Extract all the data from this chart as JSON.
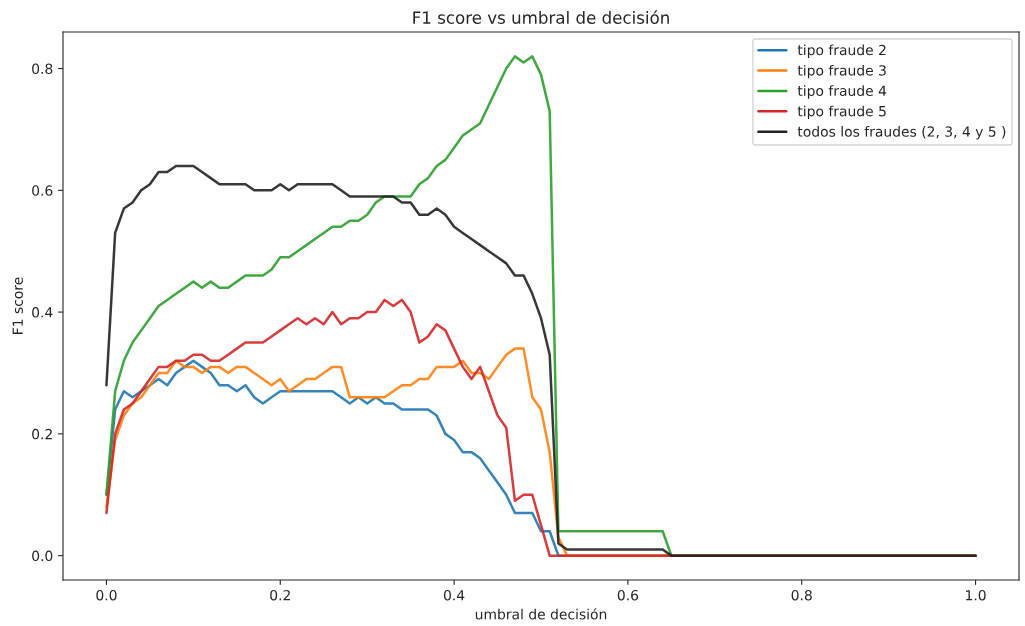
{
  "chart_data": {
    "type": "line",
    "title": "F1 score vs umbral de decisión",
    "xlabel": "umbral de decisión",
    "ylabel": "F1 score",
    "xlim": [
      -0.05,
      1.05
    ],
    "xticks": [
      {
        "value": 0,
        "label": "0.0"
      },
      0.2,
      0.4,
      0.6,
      0.8,
      {
        "value": 1,
        "label": "1.0"
      }
    ],
    "ylim": [
      -0.04,
      0.86
    ],
    "yticks": [
      {
        "value": 0,
        "label": "0.0"
      },
      0.2,
      0.4,
      0.6,
      0.8
    ],
    "grid": false,
    "legend": "top right",
    "marker": "none",
    "line_style": "solid",
    "series": [
      {
        "name": "tipo fraude 2",
        "color": "#1f77b4",
        "x": [
          0,
          0.01,
          0.02,
          0.03,
          0.04,
          0.05,
          0.06,
          0.07,
          0.08,
          0.09,
          0.1,
          0.11,
          0.12,
          0.13,
          0.14,
          0.15,
          0.16,
          0.17,
          0.18,
          0.19,
          0.2,
          0.21,
          0.22,
          0.23,
          0.24,
          0.25,
          0.26,
          0.27,
          0.28,
          0.29,
          0.3,
          0.31,
          0.32,
          0.33,
          0.34,
          0.35,
          0.36,
          0.37,
          0.38,
          0.39,
          0.4,
          0.41,
          0.42,
          0.43,
          0.44,
          0.45,
          0.46,
          0.47,
          0.48,
          0.49,
          0.5,
          0.51,
          0.52,
          0.53,
          1.0
        ],
        "values": [
          0.1,
          0.24,
          0.27,
          0.26,
          0.27,
          0.28,
          0.29,
          0.28,
          0.3,
          0.31,
          0.32,
          0.31,
          0.3,
          0.28,
          0.28,
          0.27,
          0.28,
          0.26,
          0.25,
          0.26,
          0.27,
          0.27,
          0.27,
          0.27,
          0.27,
          0.27,
          0.27,
          0.26,
          0.25,
          0.26,
          0.25,
          0.26,
          0.25,
          0.25,
          0.24,
          0.24,
          0.24,
          0.24,
          0.23,
          0.2,
          0.19,
          0.17,
          0.17,
          0.16,
          0.14,
          0.12,
          0.1,
          0.07,
          0.07,
          0.07,
          0.04,
          0.04,
          0,
          0,
          0
        ]
      },
      {
        "name": "tipo fraude 3",
        "color": "#ff7f0e",
        "x": [
          0,
          0.01,
          0.02,
          0.03,
          0.04,
          0.05,
          0.06,
          0.07,
          0.08,
          0.09,
          0.1,
          0.11,
          0.12,
          0.13,
          0.14,
          0.15,
          0.16,
          0.17,
          0.18,
          0.19,
          0.2,
          0.21,
          0.22,
          0.23,
          0.24,
          0.25,
          0.26,
          0.27,
          0.28,
          0.29,
          0.3,
          0.31,
          0.32,
          0.33,
          0.34,
          0.35,
          0.36,
          0.37,
          0.38,
          0.39,
          0.4,
          0.41,
          0.42,
          0.43,
          0.44,
          0.45,
          0.46,
          0.47,
          0.48,
          0.49,
          0.5,
          0.51,
          0.52,
          0.53,
          1.0
        ],
        "values": [
          0.08,
          0.19,
          0.23,
          0.25,
          0.26,
          0.28,
          0.3,
          0.3,
          0.32,
          0.31,
          0.31,
          0.3,
          0.31,
          0.31,
          0.3,
          0.31,
          0.31,
          0.3,
          0.29,
          0.28,
          0.29,
          0.27,
          0.28,
          0.29,
          0.29,
          0.3,
          0.31,
          0.31,
          0.26,
          0.26,
          0.26,
          0.26,
          0.26,
          0.27,
          0.28,
          0.28,
          0.29,
          0.29,
          0.31,
          0.31,
          0.31,
          0.32,
          0.3,
          0.3,
          0.29,
          0.31,
          0.33,
          0.34,
          0.34,
          0.26,
          0.24,
          0.17,
          0.03,
          0,
          0
        ]
      },
      {
        "name": "tipo fraude 4",
        "color": "#2ca02c",
        "x": [
          0,
          0.01,
          0.02,
          0.03,
          0.04,
          0.05,
          0.06,
          0.07,
          0.08,
          0.09,
          0.1,
          0.11,
          0.12,
          0.13,
          0.14,
          0.15,
          0.16,
          0.17,
          0.18,
          0.19,
          0.2,
          0.21,
          0.22,
          0.23,
          0.24,
          0.25,
          0.26,
          0.27,
          0.28,
          0.29,
          0.3,
          0.31,
          0.32,
          0.33,
          0.34,
          0.35,
          0.36,
          0.37,
          0.38,
          0.39,
          0.4,
          0.41,
          0.42,
          0.43,
          0.44,
          0.45,
          0.46,
          0.47,
          0.48,
          0.49,
          0.5,
          0.51,
          0.52,
          0.53,
          0.64,
          0.65,
          1.0
        ],
        "values": [
          0.1,
          0.27,
          0.32,
          0.35,
          0.37,
          0.39,
          0.41,
          0.42,
          0.43,
          0.44,
          0.45,
          0.44,
          0.45,
          0.44,
          0.44,
          0.45,
          0.46,
          0.46,
          0.46,
          0.47,
          0.49,
          0.49,
          0.5,
          0.51,
          0.52,
          0.53,
          0.54,
          0.54,
          0.55,
          0.55,
          0.56,
          0.58,
          0.59,
          0.59,
          0.59,
          0.59,
          0.61,
          0.62,
          0.64,
          0.65,
          0.67,
          0.69,
          0.7,
          0.71,
          0.74,
          0.77,
          0.8,
          0.82,
          0.81,
          0.82,
          0.79,
          0.73,
          0.04,
          0.04,
          0.04,
          0,
          0
        ]
      },
      {
        "name": "tipo fraude 5",
        "color": "#d62728",
        "x": [
          0,
          0.01,
          0.02,
          0.03,
          0.04,
          0.05,
          0.06,
          0.07,
          0.08,
          0.09,
          0.1,
          0.11,
          0.12,
          0.13,
          0.14,
          0.15,
          0.16,
          0.17,
          0.18,
          0.19,
          0.2,
          0.21,
          0.22,
          0.23,
          0.24,
          0.25,
          0.26,
          0.27,
          0.28,
          0.29,
          0.3,
          0.31,
          0.32,
          0.33,
          0.34,
          0.35,
          0.36,
          0.37,
          0.38,
          0.39,
          0.4,
          0.41,
          0.42,
          0.43,
          0.44,
          0.45,
          0.46,
          0.47,
          0.48,
          0.49,
          0.5,
          0.51,
          0.52,
          0.53,
          1.0
        ],
        "values": [
          0.07,
          0.2,
          0.24,
          0.25,
          0.27,
          0.29,
          0.31,
          0.31,
          0.32,
          0.32,
          0.33,
          0.33,
          0.32,
          0.32,
          0.33,
          0.34,
          0.35,
          0.35,
          0.35,
          0.36,
          0.37,
          0.38,
          0.39,
          0.38,
          0.39,
          0.38,
          0.4,
          0.38,
          0.39,
          0.39,
          0.4,
          0.4,
          0.42,
          0.41,
          0.42,
          0.4,
          0.35,
          0.36,
          0.38,
          0.37,
          0.34,
          0.31,
          0.29,
          0.31,
          0.27,
          0.23,
          0.21,
          0.09,
          0.1,
          0.1,
          0.05,
          0,
          0,
          0,
          0
        ]
      },
      {
        "name": "todos los fraudes (2, 3, 4 y 5 )",
        "color": "#222222",
        "x": [
          0,
          0.01,
          0.02,
          0.03,
          0.04,
          0.05,
          0.06,
          0.07,
          0.08,
          0.09,
          0.1,
          0.11,
          0.12,
          0.13,
          0.14,
          0.15,
          0.16,
          0.17,
          0.18,
          0.19,
          0.2,
          0.21,
          0.22,
          0.23,
          0.24,
          0.25,
          0.26,
          0.27,
          0.28,
          0.29,
          0.3,
          0.31,
          0.32,
          0.33,
          0.34,
          0.35,
          0.36,
          0.37,
          0.38,
          0.39,
          0.4,
          0.41,
          0.42,
          0.43,
          0.44,
          0.45,
          0.46,
          0.47,
          0.48,
          0.49,
          0.5,
          0.51,
          0.52,
          0.53,
          0.64,
          0.65,
          1.0
        ],
        "values": [
          0.28,
          0.53,
          0.57,
          0.58,
          0.6,
          0.61,
          0.63,
          0.63,
          0.64,
          0.64,
          0.64,
          0.63,
          0.62,
          0.61,
          0.61,
          0.61,
          0.61,
          0.6,
          0.6,
          0.6,
          0.61,
          0.6,
          0.61,
          0.61,
          0.61,
          0.61,
          0.61,
          0.6,
          0.59,
          0.59,
          0.59,
          0.59,
          0.59,
          0.59,
          0.58,
          0.58,
          0.56,
          0.56,
          0.57,
          0.56,
          0.54,
          0.53,
          0.52,
          0.51,
          0.5,
          0.49,
          0.48,
          0.46,
          0.46,
          0.43,
          0.39,
          0.33,
          0.02,
          0.01,
          0.01,
          0,
          0
        ]
      }
    ]
  }
}
